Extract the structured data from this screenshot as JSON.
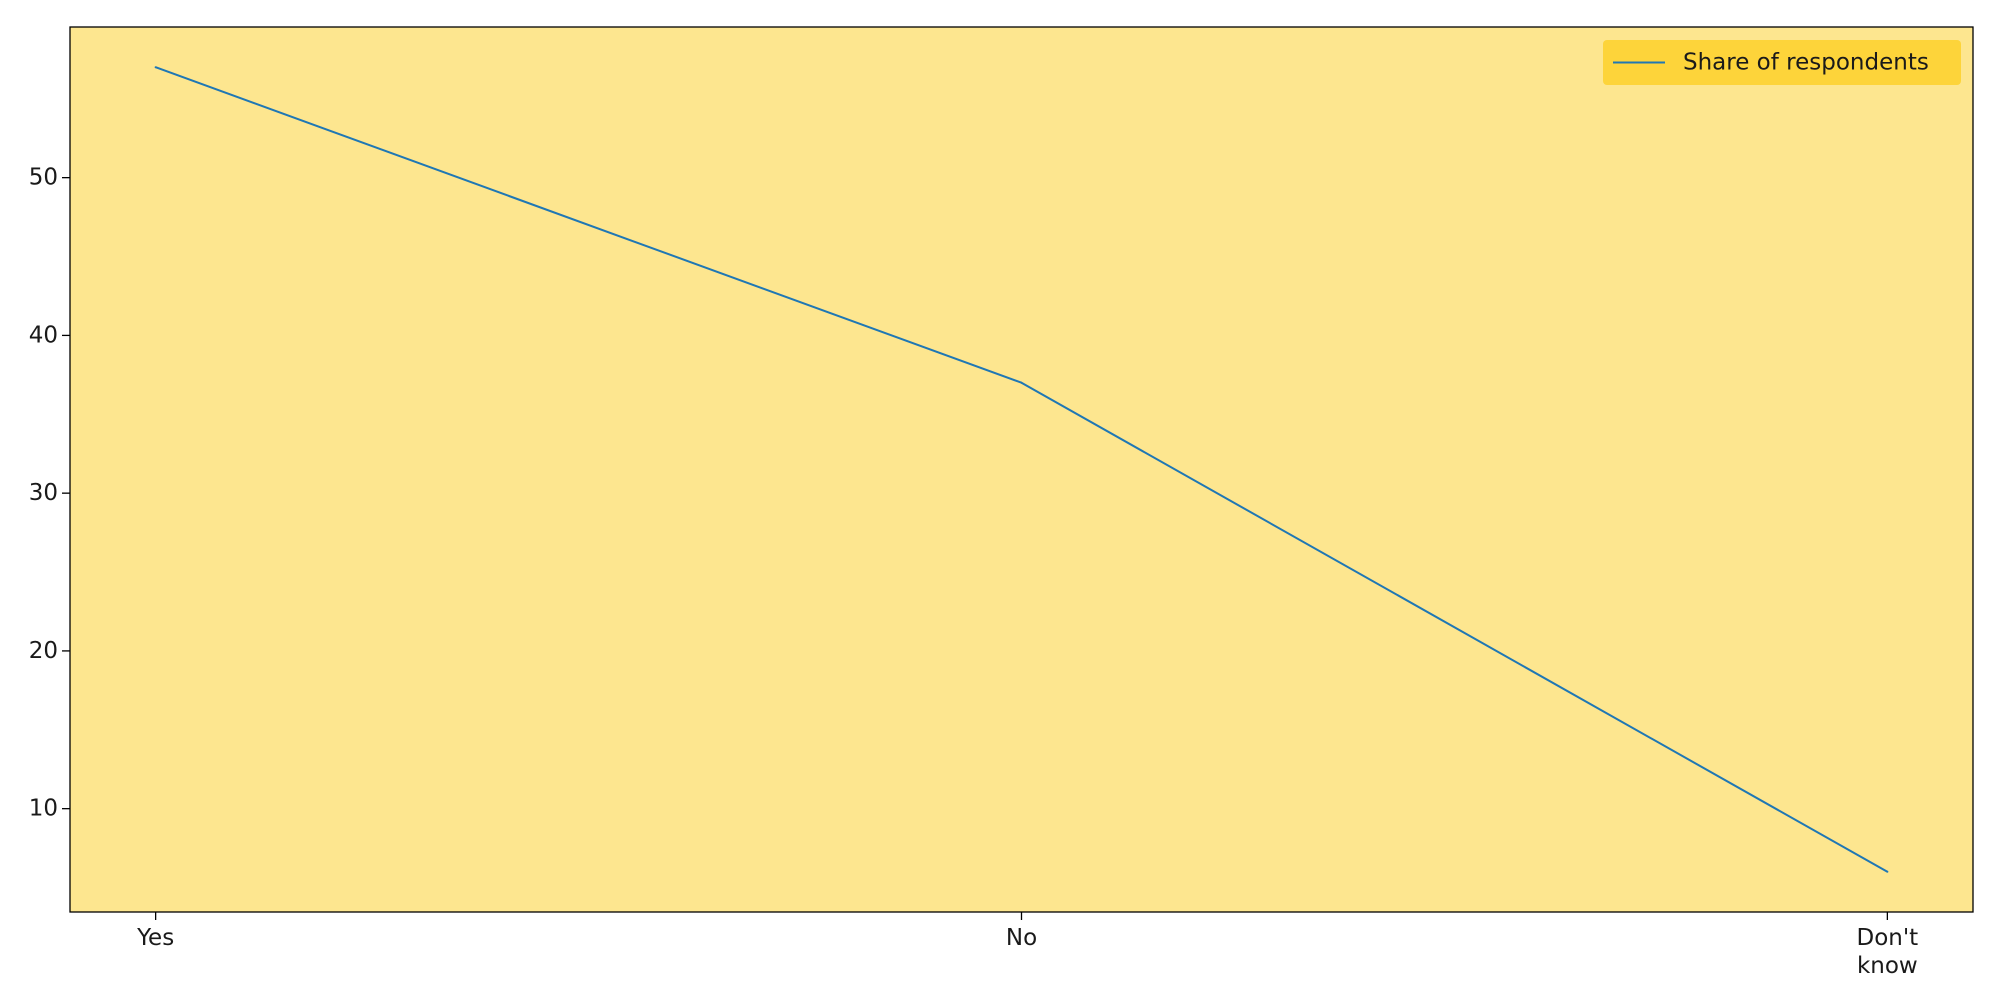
{
  "chart_data": {
    "type": "line",
    "categories": [
      "Yes",
      "No",
      "Don't know"
    ],
    "series": [
      {
        "name": "Share of respondents",
        "values": [
          57,
          37,
          6
        ]
      }
    ],
    "title": "",
    "xlabel": "",
    "ylabel": "",
    "ylim": [
      3.45,
      59.55
    ],
    "yticks": [
      10,
      20,
      30,
      40,
      50
    ],
    "grid": false,
    "legend": "top-right",
    "colors": {
      "plot_background": "#fde68f",
      "legend_background": "#fdd43a",
      "line": "#1f77b4",
      "axis": "#000000"
    }
  }
}
